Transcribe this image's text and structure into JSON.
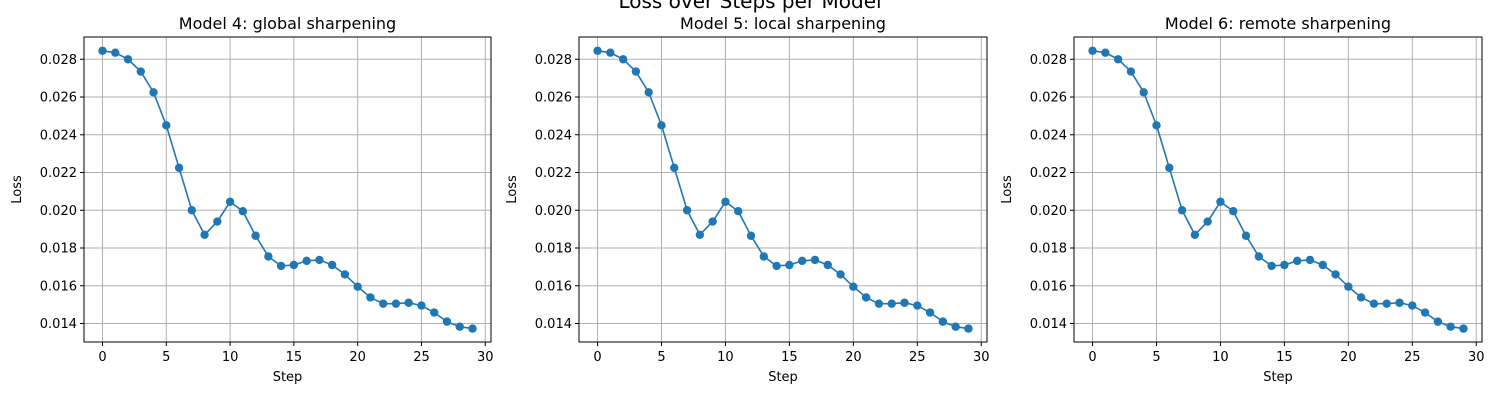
{
  "figure": {
    "suptitle": "Loss over Steps per Model",
    "line_color": "#1f77b4"
  },
  "chart_data": [
    {
      "type": "line",
      "title": "Model 4: global sharpening",
      "xlabel": "Step",
      "ylabel": "Loss",
      "xlim": [
        -1.45,
        30.45
      ],
      "ylim": [
        0.01302,
        0.02918
      ],
      "xticks": [
        0,
        5,
        10,
        15,
        20,
        25,
        30
      ],
      "yticks": [
        0.014,
        0.016,
        0.018,
        0.02,
        0.022,
        0.024,
        0.026,
        0.028
      ],
      "grid": true,
      "marker": "circle",
      "x": [
        0,
        1,
        2,
        3,
        4,
        5,
        6,
        7,
        8,
        9,
        10,
        11,
        12,
        13,
        14,
        15,
        16,
        17,
        18,
        19,
        20,
        21,
        22,
        23,
        24,
        25,
        26,
        27,
        28,
        29
      ],
      "y": [
        0.02845,
        0.02835,
        0.028,
        0.02735,
        0.02625,
        0.0245,
        0.02225,
        0.02,
        0.0187,
        0.0194,
        0.02045,
        0.01995,
        0.01865,
        0.01755,
        0.01705,
        0.0171,
        0.01732,
        0.01737,
        0.0171,
        0.0166,
        0.01595,
        0.01538,
        0.01505,
        0.01505,
        0.0151,
        0.01495,
        0.01458,
        0.0141,
        0.01383,
        0.01373
      ]
    },
    {
      "type": "line",
      "title": "Model 5: local sharpening",
      "xlabel": "Step",
      "ylabel": "Loss",
      "xlim": [
        -1.45,
        30.45
      ],
      "ylim": [
        0.01302,
        0.02918
      ],
      "xticks": [
        0,
        5,
        10,
        15,
        20,
        25,
        30
      ],
      "yticks": [
        0.014,
        0.016,
        0.018,
        0.02,
        0.022,
        0.024,
        0.026,
        0.028
      ],
      "grid": true,
      "marker": "circle",
      "x": [
        0,
        1,
        2,
        3,
        4,
        5,
        6,
        7,
        8,
        9,
        10,
        11,
        12,
        13,
        14,
        15,
        16,
        17,
        18,
        19,
        20,
        21,
        22,
        23,
        24,
        25,
        26,
        27,
        28,
        29
      ],
      "y": [
        0.02845,
        0.02835,
        0.028,
        0.02735,
        0.02625,
        0.0245,
        0.02225,
        0.02,
        0.0187,
        0.0194,
        0.02045,
        0.01995,
        0.01865,
        0.01755,
        0.01705,
        0.0171,
        0.01732,
        0.01737,
        0.0171,
        0.0166,
        0.01595,
        0.01538,
        0.01505,
        0.01505,
        0.0151,
        0.01495,
        0.01458,
        0.0141,
        0.01383,
        0.01373
      ]
    },
    {
      "type": "line",
      "title": "Model 6: remote sharpening",
      "xlabel": "Step",
      "ylabel": "Loss",
      "xlim": [
        -1.45,
        30.45
      ],
      "ylim": [
        0.01302,
        0.02918
      ],
      "xticks": [
        0,
        5,
        10,
        15,
        20,
        25,
        30
      ],
      "yticks": [
        0.014,
        0.016,
        0.018,
        0.02,
        0.022,
        0.024,
        0.026,
        0.028
      ],
      "grid": true,
      "marker": "circle",
      "x": [
        0,
        1,
        2,
        3,
        4,
        5,
        6,
        7,
        8,
        9,
        10,
        11,
        12,
        13,
        14,
        15,
        16,
        17,
        18,
        19,
        20,
        21,
        22,
        23,
        24,
        25,
        26,
        27,
        28,
        29
      ],
      "y": [
        0.02845,
        0.02835,
        0.028,
        0.02735,
        0.02625,
        0.0245,
        0.02225,
        0.02,
        0.0187,
        0.0194,
        0.02045,
        0.01995,
        0.01865,
        0.01755,
        0.01705,
        0.0171,
        0.01732,
        0.01737,
        0.0171,
        0.0166,
        0.01595,
        0.01538,
        0.01505,
        0.01505,
        0.0151,
        0.01495,
        0.01458,
        0.0141,
        0.01383,
        0.01373
      ]
    }
  ]
}
